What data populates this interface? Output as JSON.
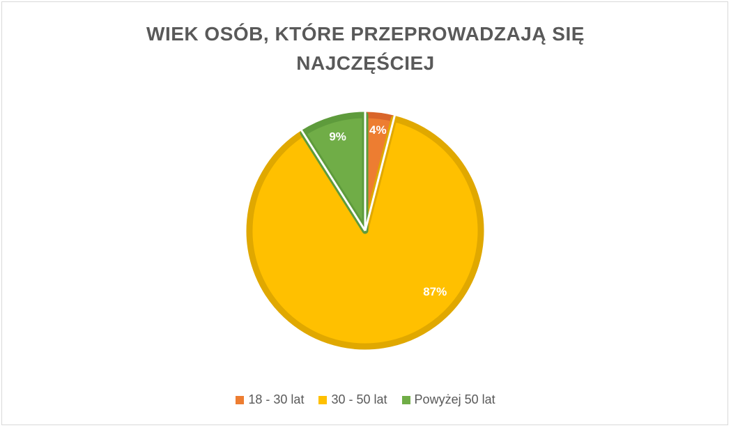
{
  "chart_data": {
    "type": "pie",
    "title_lines": [
      "WIEK OSÓB, KTÓRE PRZEPROWADZAJĄ SIĘ",
      "NAJCZĘŚCIEJ"
    ],
    "categories": [
      "18 - 30 lat",
      "30 - 50 lat",
      "Powyżej 50 lat"
    ],
    "values": [
      4,
      87,
      9
    ],
    "data_labels": [
      "4%",
      "87%",
      "9%"
    ],
    "colors": [
      "#ED7D31",
      "#FFC000",
      "#70AD47"
    ],
    "border_colors": [
      "#D9652A",
      "#E0A800",
      "#5E9B3C"
    ],
    "legend_position": "bottom",
    "start_angle_deg": 0,
    "direction": "clockwise"
  }
}
